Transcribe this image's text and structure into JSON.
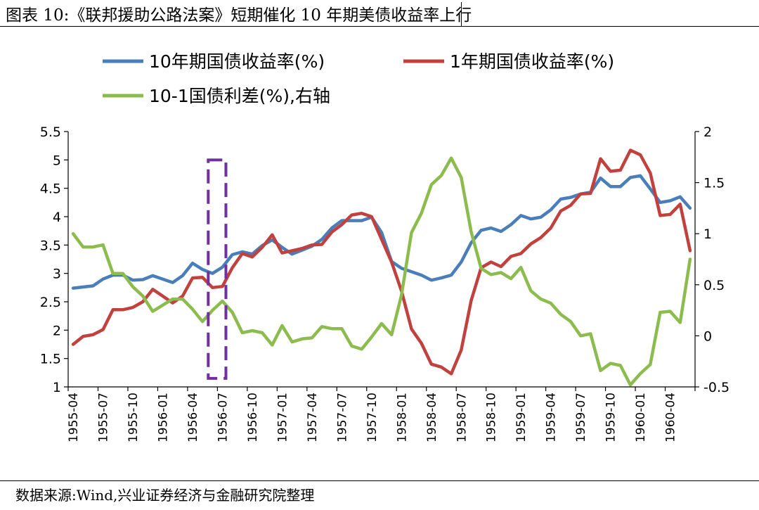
{
  "header": {
    "title": "图表 10:《联邦援助公路法案》短期催化 10 年期美债收益率上行"
  },
  "footer": {
    "source": "数据来源:Wind,兴业证券经济与金融研究院整理"
  },
  "colors": {
    "y10": "#4a7ebb",
    "y1": "#c0413e",
    "spread": "#8cbb4e",
    "highlight": "#7030a0"
  },
  "chart_data": {
    "type": "line",
    "title": "",
    "xlabel": "",
    "ylabel": "",
    "ylim": [
      1,
      5.5
    ],
    "y2lim": [
      -0.5,
      2
    ],
    "yticks": [
      "5.5",
      "5",
      "4.5",
      "4",
      "3.5",
      "3",
      "2.5",
      "2",
      "1.5",
      "1"
    ],
    "y2ticks": [
      "2",
      "1.5",
      "1",
      "0.5",
      "0",
      "-0.5"
    ],
    "grid": false,
    "legend_position": "top",
    "x_tick_labels": [
      "1955-04",
      "1955-07",
      "1955-10",
      "1956-01",
      "1956-04",
      "1956-07",
      "1956-10",
      "1957-01",
      "1957-04",
      "1957-07",
      "1957-10",
      "1958-01",
      "1958-04",
      "1958-07",
      "1958-10",
      "1959-01",
      "1959-04",
      "1959-07",
      "1959-10",
      "1960-01",
      "1960-04"
    ],
    "x": [
      "1955-04",
      "1955-05",
      "1955-06",
      "1955-07",
      "1955-08",
      "1955-09",
      "1955-10",
      "1955-11",
      "1955-12",
      "1956-01",
      "1956-02",
      "1956-03",
      "1956-04",
      "1956-05",
      "1956-06",
      "1956-07",
      "1956-08",
      "1956-09",
      "1956-10",
      "1956-11",
      "1956-12",
      "1957-01",
      "1957-02",
      "1957-03",
      "1957-04",
      "1957-05",
      "1957-06",
      "1957-07",
      "1957-08",
      "1957-09",
      "1957-10",
      "1957-11",
      "1957-12",
      "1958-01",
      "1958-02",
      "1958-03",
      "1958-04",
      "1958-05",
      "1958-06",
      "1958-07",
      "1958-08",
      "1958-09",
      "1958-10",
      "1958-11",
      "1958-12",
      "1959-01",
      "1959-02",
      "1959-03",
      "1959-04",
      "1959-05",
      "1959-06",
      "1959-07",
      "1959-08",
      "1959-09",
      "1959-10",
      "1959-11",
      "1959-12",
      "1960-01",
      "1960-02",
      "1960-03",
      "1960-04",
      "1960-05",
      "1960-06"
    ],
    "series": [
      {
        "name": "10年期国债收益率(%)",
        "axis": "left",
        "values": [
          2.74,
          2.76,
          2.78,
          2.9,
          2.97,
          2.97,
          2.88,
          2.89,
          2.96,
          2.9,
          2.84,
          2.96,
          3.18,
          3.07,
          3.0,
          3.11,
          3.33,
          3.38,
          3.34,
          3.49,
          3.59,
          3.46,
          3.34,
          3.41,
          3.48,
          3.6,
          3.8,
          3.93,
          3.93,
          3.93,
          3.99,
          3.72,
          3.21,
          3.09,
          3.03,
          2.97,
          2.88,
          2.92,
          2.97,
          3.2,
          3.54,
          3.76,
          3.8,
          3.74,
          3.86,
          4.02,
          3.96,
          3.99,
          4.12,
          4.31,
          4.34,
          4.4,
          4.43,
          4.68,
          4.53,
          4.53,
          4.69,
          4.72,
          4.49,
          4.25,
          4.28,
          4.35,
          4.15
        ]
      },
      {
        "name": "1年期国债收益率(%)",
        "axis": "left",
        "values": [
          1.75,
          1.89,
          1.92,
          2.01,
          2.36,
          2.36,
          2.4,
          2.5,
          2.72,
          2.6,
          2.48,
          2.6,
          2.92,
          2.93,
          2.75,
          2.77,
          3.1,
          3.35,
          3.29,
          3.46,
          3.68,
          3.36,
          3.4,
          3.44,
          3.5,
          3.51,
          3.73,
          3.86,
          4.03,
          4.06,
          4.0,
          3.6,
          3.2,
          2.69,
          2.02,
          1.77,
          1.4,
          1.35,
          1.23,
          1.65,
          2.52,
          3.1,
          3.2,
          3.12,
          3.3,
          3.35,
          3.52,
          3.63,
          3.8,
          4.1,
          4.2,
          4.4,
          4.41,
          5.02,
          4.8,
          4.82,
          5.17,
          5.09,
          4.77,
          4.02,
          4.04,
          4.22,
          3.4
        ]
      },
      {
        "name": "10-1国债利差(%),右轴",
        "axis": "right",
        "values": [
          1.0,
          0.87,
          0.87,
          0.89,
          0.61,
          0.61,
          0.48,
          0.39,
          0.24,
          0.3,
          0.36,
          0.36,
          0.26,
          0.14,
          0.25,
          0.34,
          0.23,
          0.03,
          0.05,
          0.03,
          -0.09,
          0.1,
          -0.06,
          -0.03,
          -0.02,
          0.09,
          0.07,
          0.07,
          -0.1,
          -0.13,
          -0.01,
          0.12,
          0.01,
          0.4,
          1.01,
          1.2,
          1.48,
          1.57,
          1.74,
          1.55,
          1.02,
          0.66,
          0.6,
          0.62,
          0.56,
          0.67,
          0.44,
          0.36,
          0.32,
          0.21,
          0.14,
          0.0,
          0.02,
          -0.34,
          -0.27,
          -0.29,
          -0.48,
          -0.37,
          -0.28,
          0.23,
          0.24,
          0.13,
          0.75
        ]
      }
    ],
    "legend": [
      {
        "label": "10年期国债收益率(%)",
        "series": 0
      },
      {
        "label": "1年期国债收益率(%)",
        "series": 1
      },
      {
        "label": "10-1国债利差(%),右轴",
        "series": 2
      }
    ],
    "highlight_box": {
      "x_start": "1956-06",
      "x_end": "1956-07",
      "y_bottom": 1.15,
      "y_top": 5.0,
      "style": "dashed",
      "color": "#7030a0"
    }
  }
}
